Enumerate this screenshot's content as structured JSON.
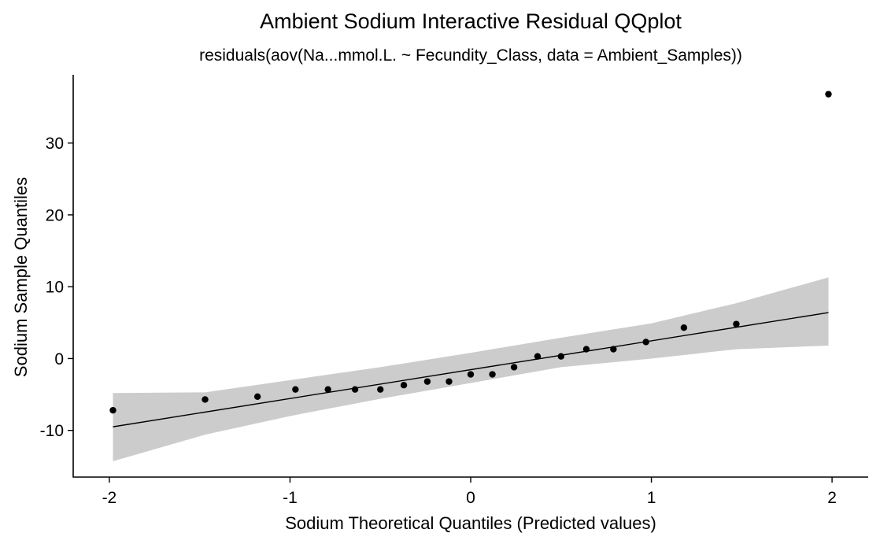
{
  "chart_data": {
    "type": "scatter",
    "title": "Ambient Sodium Interactive Residual QQplot",
    "subtitle": "residuals(aov(Na...mmol.L. ~ Fecundity_Class, data = Ambient_Samples))",
    "xlabel": "Sodium Theoretical Quantiles (Predicted values)",
    "ylabel": "Sodium Sample Quantiles",
    "xlim": [
      -2.2,
      2.2
    ],
    "ylim": [
      -16.5,
      39.5
    ],
    "x_ticks": [
      -2,
      -1,
      0,
      1,
      2
    ],
    "x_tick_labels": [
      "-2",
      "-1",
      "0",
      "1",
      "2"
    ],
    "y_ticks": [
      -10,
      0,
      10,
      20,
      30
    ],
    "y_tick_labels": [
      "-10",
      "0",
      "10",
      "20",
      "30"
    ],
    "grid": false,
    "points": [
      {
        "x": -1.98,
        "y": -7.2
      },
      {
        "x": -1.47,
        "y": -5.7
      },
      {
        "x": -1.18,
        "y": -5.3
      },
      {
        "x": -0.97,
        "y": -4.3
      },
      {
        "x": -0.79,
        "y": -4.3
      },
      {
        "x": -0.64,
        "y": -4.3
      },
      {
        "x": -0.5,
        "y": -4.3
      },
      {
        "x": -0.37,
        "y": -3.7
      },
      {
        "x": -0.24,
        "y": -3.2
      },
      {
        "x": -0.12,
        "y": -3.2
      },
      {
        "x": 0.0,
        "y": -2.2
      },
      {
        "x": 0.12,
        "y": -2.2
      },
      {
        "x": 0.24,
        "y": -1.2
      },
      {
        "x": 0.37,
        "y": 0.3
      },
      {
        "x": 0.5,
        "y": 0.3
      },
      {
        "x": 0.64,
        "y": 1.3
      },
      {
        "x": 0.79,
        "y": 1.3
      },
      {
        "x": 0.97,
        "y": 2.3
      },
      {
        "x": 1.18,
        "y": 4.3
      },
      {
        "x": 1.47,
        "y": 4.8
      },
      {
        "x": 1.98,
        "y": 36.8
      }
    ],
    "reference_line": {
      "x": [
        -1.98,
        1.98
      ],
      "y": [
        -9.5,
        6.4
      ]
    },
    "confidence_band": {
      "x": [
        -1.98,
        -1.47,
        -1.0,
        -0.5,
        0.0,
        0.5,
        1.0,
        1.47,
        1.98
      ],
      "upper": [
        -4.8,
        -4.7,
        -3.0,
        -1.2,
        0.8,
        2.9,
        4.9,
        7.7,
        11.3
      ],
      "lower": [
        -14.3,
        -10.6,
        -8.0,
        -5.6,
        -3.4,
        -1.2,
        0.0,
        1.3,
        1.8
      ]
    },
    "colors": {
      "band": "#cccccc",
      "line": "#000000",
      "points": "#000000",
      "axes": "#000000"
    }
  }
}
